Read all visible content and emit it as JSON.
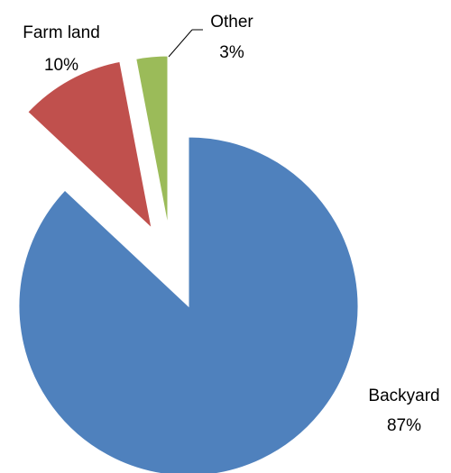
{
  "chart_data": {
    "type": "pie",
    "title": "",
    "legend": "none",
    "slices": [
      {
        "name": "Backyard",
        "value": 87,
        "label": "87%",
        "color": "#4F81BD"
      },
      {
        "name": "Farm land",
        "value": 10,
        "label": "10%",
        "color": "#C0504D"
      },
      {
        "name": "Other",
        "value": 3,
        "label": "3%",
        "color": "#9BBB59"
      }
    ]
  }
}
